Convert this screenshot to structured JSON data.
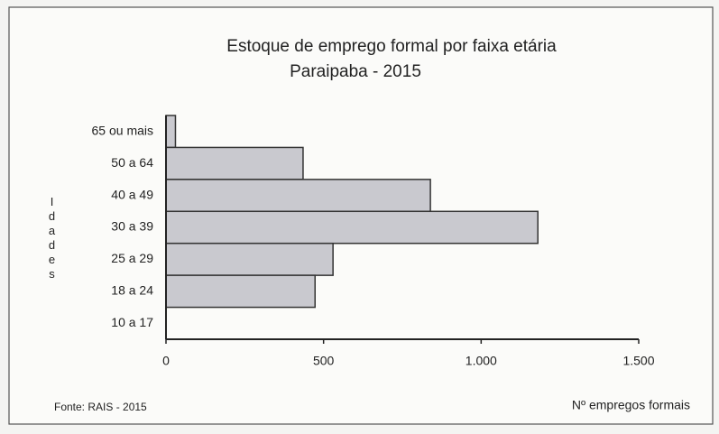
{
  "chart_data": {
    "type": "hbar",
    "title": "Estoque de emprego formal por faixa etária",
    "subtitle": "Paraipaba - 2015",
    "y_label": "Idades",
    "x_label": "Nº empregos formais",
    "source": "Fonte: RAIS - 2015",
    "categories": [
      "65 ou mais",
      "50 a 64",
      "40 a 49",
      "30 a 39",
      "25 a 29",
      "18 a 24",
      "10 a 17"
    ],
    "values": [
      30,
      435,
      839,
      1180,
      530,
      473,
      0
    ],
    "color": "#c9c9cf",
    "xlim": [
      0,
      1500
    ],
    "xticks": [
      0,
      500,
      {
        "value": 1000,
        "label": "1.000"
      },
      {
        "value": 1500,
        "label": "1.500"
      }
    ],
    "grid": false
  }
}
